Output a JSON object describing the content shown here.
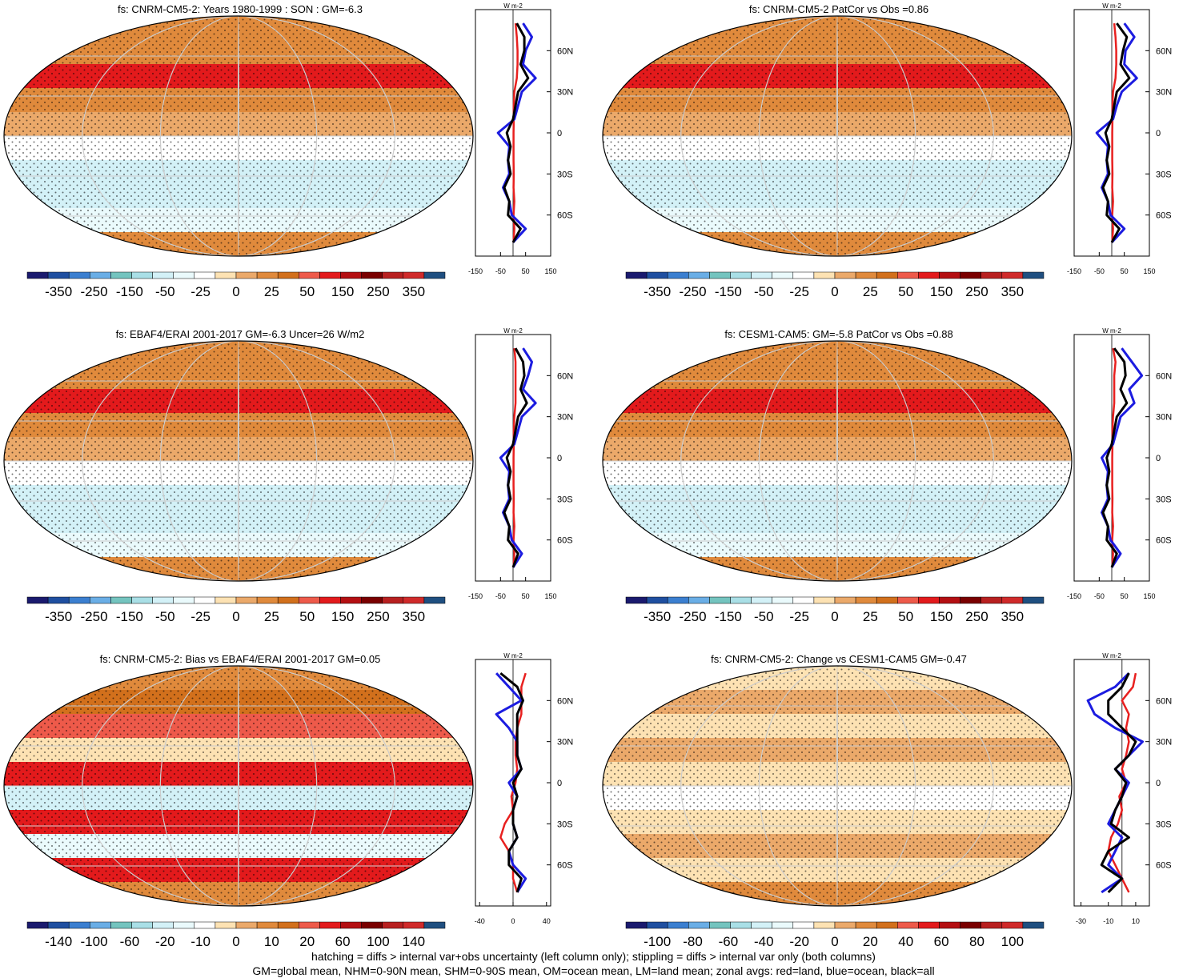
{
  "footer": {
    "line1": "hatching = diffs > internal var+obs uncertainty (left column only); stippling = diffs > internal var only (both columns)",
    "line2": "GM=global mean, NHM=0-90N mean, SHM=0-90S mean, OM=ocean mean, LM=land mean; zonal avgs: red=land, blue=ocean, black=all"
  },
  "colors": {
    "land": "#e8201f",
    "ocean": "#1c1ce0",
    "all": "#000000"
  },
  "palette": [
    "#1a1a6e",
    "#1f4fa0",
    "#3b7fd0",
    "#6aaee6",
    "#74c4bf",
    "#a9dfe6",
    "#d3f1f7",
    "#eafafc",
    "#ffffff",
    "#fde2b3",
    "#eba96a",
    "#e08a3c",
    "#d2701c",
    "#ee5a4a",
    "#e31a1c",
    "#b40f12",
    "#7a0000",
    "#b82020",
    "#d02a2a",
    "#1f4f80"
  ],
  "chart_data": [
    {
      "type": "heatmap",
      "title": "fs: CNRM-CM5-2: Years 1980-1999 : SON : GM=-6.3",
      "colorbar_labels": [
        "-350",
        "-250",
        "-150",
        "-50",
        "-25",
        "0",
        "25",
        "50",
        "150",
        "250",
        "350"
      ],
      "zonal": {
        "units": "W m-2",
        "xticks": [
          "-150",
          "-50",
          "50",
          "150"
        ],
        "xlim": [
          -150,
          150
        ],
        "yticks": [
          "60N",
          "30N",
          "0",
          "30S",
          "60S"
        ],
        "lat": [
          80,
          70,
          60,
          50,
          40,
          30,
          20,
          10,
          0,
          -10,
          -20,
          -30,
          -40,
          -50,
          -60,
          -70,
          -80
        ],
        "series": [
          {
            "name": "land",
            "values": [
              10,
              15,
              18,
              18,
              15,
              5,
              3,
              3,
              2,
              2,
              2,
              3,
              2,
              5,
              2,
              5,
              2
            ]
          },
          {
            "name": "ocean",
            "values": [
              40,
              75,
              50,
              40,
              90,
              35,
              20,
              5,
              -60,
              -15,
              -20,
              -15,
              -40,
              -15,
              -5,
              50,
              0
            ]
          },
          {
            "name": "all",
            "values": [
              15,
              45,
              45,
              30,
              60,
              20,
              10,
              0,
              -25,
              -10,
              -20,
              -10,
              -35,
              -15,
              -20,
              30,
              0
            ]
          }
        ]
      }
    },
    {
      "type": "heatmap",
      "title": "fs: CNRM-CM5-2 PatCor vs Obs =0.86",
      "colorbar_labels": [
        "-350",
        "-250",
        "-150",
        "-50",
        "-25",
        "0",
        "25",
        "50",
        "150",
        "250",
        "350"
      ],
      "zonal": {
        "units": "W m-2",
        "xticks": [
          "-150",
          "-50",
          "50",
          "150"
        ],
        "xlim": [
          -150,
          150
        ],
        "yticks": [
          "60N",
          "30N",
          "0",
          "30S",
          "60S"
        ],
        "lat": [
          80,
          70,
          60,
          50,
          40,
          30,
          20,
          10,
          0,
          -10,
          -20,
          -30,
          -40,
          -50,
          -60,
          -70,
          -80
        ],
        "series": [
          {
            "name": "land",
            "values": [
              10,
              15,
              18,
              18,
              15,
              5,
              3,
              3,
              2,
              2,
              2,
              3,
              2,
              5,
              2,
              5,
              2
            ]
          },
          {
            "name": "ocean",
            "values": [
              50,
              90,
              55,
              50,
              100,
              40,
              20,
              5,
              -60,
              -15,
              -20,
              -15,
              -40,
              -15,
              -5,
              50,
              0
            ]
          },
          {
            "name": "all",
            "values": [
              20,
              60,
              45,
              35,
              70,
              20,
              10,
              0,
              -25,
              -10,
              -20,
              -10,
              -35,
              -15,
              -20,
              30,
              0
            ]
          }
        ]
      }
    },
    {
      "type": "heatmap",
      "title": "fs: EBAF4/ERAI 2001-2017 GM=-6.3 Uncer=26 W/m2",
      "colorbar_labels": [
        "-350",
        "-250",
        "-150",
        "-50",
        "-25",
        "0",
        "25",
        "50",
        "150",
        "250",
        "350"
      ],
      "zonal": {
        "units": "W m-2",
        "xticks": [
          "-150",
          "-50",
          "50",
          "150"
        ],
        "xlim": [
          -150,
          150
        ],
        "yticks": [
          "60N",
          "30N",
          "0",
          "30S",
          "60S"
        ],
        "lat": [
          80,
          70,
          60,
          50,
          40,
          30,
          20,
          10,
          0,
          -10,
          -20,
          -30,
          -40,
          -50,
          -60,
          -70,
          -80
        ],
        "series": [
          {
            "name": "land",
            "values": [
              5,
              10,
              10,
              10,
              10,
              5,
              3,
              3,
              2,
              2,
              2,
              3,
              2,
              5,
              2,
              5,
              2
            ]
          },
          {
            "name": "ocean",
            "values": [
              40,
              75,
              60,
              40,
              90,
              35,
              20,
              5,
              -50,
              -15,
              -20,
              -15,
              -40,
              -15,
              -5,
              35,
              0
            ]
          },
          {
            "name": "all",
            "values": [
              10,
              40,
              45,
              30,
              55,
              20,
              10,
              0,
              -25,
              -10,
              -20,
              -10,
              -35,
              -15,
              -20,
              20,
              0
            ]
          }
        ]
      }
    },
    {
      "type": "heatmap",
      "title": "fs: CESM1-CAM5: GM=-5.8 PatCor vs Obs =0.88",
      "colorbar_labels": [
        "-350",
        "-250",
        "-150",
        "-50",
        "-25",
        "0",
        "25",
        "50",
        "150",
        "250",
        "350"
      ],
      "zonal": {
        "units": "W m-2",
        "xticks": [
          "-150",
          "-50",
          "50",
          "150"
        ],
        "xlim": [
          -150,
          150
        ],
        "yticks": [
          "60N",
          "30N",
          "0",
          "30S",
          "60S"
        ],
        "lat": [
          80,
          70,
          60,
          50,
          40,
          30,
          20,
          10,
          0,
          -10,
          -20,
          -30,
          -40,
          -50,
          -60,
          -70,
          -80
        ],
        "series": [
          {
            "name": "land",
            "values": [
              5,
              15,
              10,
              10,
              10,
              5,
              3,
              3,
              2,
              2,
              2,
              3,
              2,
              5,
              2,
              5,
              2
            ]
          },
          {
            "name": "ocean",
            "values": [
              40,
              80,
              120,
              70,
              90,
              35,
              20,
              5,
              -40,
              -15,
              -20,
              -15,
              -40,
              -15,
              -5,
              35,
              0
            ]
          },
          {
            "name": "all",
            "values": [
              10,
              50,
              55,
              35,
              60,
              20,
              10,
              0,
              -20,
              -10,
              -20,
              -10,
              -35,
              -15,
              -20,
              20,
              0
            ]
          }
        ]
      }
    },
    {
      "type": "heatmap",
      "title": "fs: CNRM-CM5-2: Bias vs EBAF4/ERAI 2001-2017  GM=0.05",
      "colorbar_labels": [
        "-140",
        "-100",
        "-60",
        "-20",
        "-10",
        "0",
        "10",
        "20",
        "60",
        "100",
        "140"
      ],
      "zonal": {
        "units": "W m-2",
        "xticks": [
          "-40",
          "0",
          "40"
        ],
        "xlim": [
          -45,
          45
        ],
        "yticks": [
          "60N",
          "30N",
          "0",
          "30S",
          "60S"
        ],
        "lat": [
          80,
          70,
          60,
          50,
          40,
          30,
          20,
          10,
          0,
          -10,
          -20,
          -30,
          -40,
          -50,
          -60,
          -70,
          -80
        ],
        "series": [
          {
            "name": "land",
            "values": [
              15,
              10,
              10,
              10,
              5,
              3,
              3,
              5,
              3,
              -2,
              0,
              -10,
              -15,
              -5,
              0,
              0,
              5
            ]
          },
          {
            "name": "ocean",
            "values": [
              -20,
              -5,
              10,
              -20,
              -5,
              5,
              5,
              10,
              -5,
              5,
              0,
              0,
              5,
              -5,
              0,
              15,
              5
            ]
          },
          {
            "name": "all",
            "values": [
              -15,
              5,
              12,
              5,
              5,
              5,
              5,
              10,
              0,
              5,
              0,
              0,
              5,
              -5,
              -5,
              10,
              5
            ]
          }
        ]
      }
    },
    {
      "type": "heatmap",
      "title": "fs: CNRM-CM5-2: Change vs CESM1-CAM5 GM=-0.47",
      "colorbar_labels": [
        "-100",
        "-80",
        "-60",
        "-40",
        "-20",
        "0",
        "20",
        "40",
        "60",
        "80",
        "100"
      ],
      "zonal": {
        "units": "W m-2",
        "xticks": [
          "-30",
          "-10",
          "10"
        ],
        "xlim": [
          -35,
          20
        ],
        "yticks": [
          "60N",
          "30N",
          "0",
          "30S",
          "60S"
        ],
        "lat": [
          80,
          70,
          60,
          50,
          40,
          30,
          20,
          10,
          0,
          -10,
          -20,
          -30,
          -40,
          -50,
          -60,
          -70,
          -80
        ],
        "series": [
          {
            "name": "land",
            "values": [
              10,
              8,
              0,
              5,
              3,
              5,
              3,
              0,
              3,
              -2,
              0,
              -3,
              -8,
              -10,
              -5,
              0,
              5
            ]
          },
          {
            "name": "ocean",
            "values": [
              5,
              -5,
              -25,
              -20,
              -5,
              15,
              5,
              -5,
              5,
              0,
              -5,
              -10,
              0,
              -5,
              -10,
              0,
              -15
            ]
          },
          {
            "name": "all",
            "values": [
              5,
              0,
              -10,
              -10,
              0,
              10,
              5,
              -5,
              3,
              0,
              -5,
              -8,
              5,
              -10,
              -15,
              0,
              -10
            ]
          }
        ]
      }
    }
  ]
}
